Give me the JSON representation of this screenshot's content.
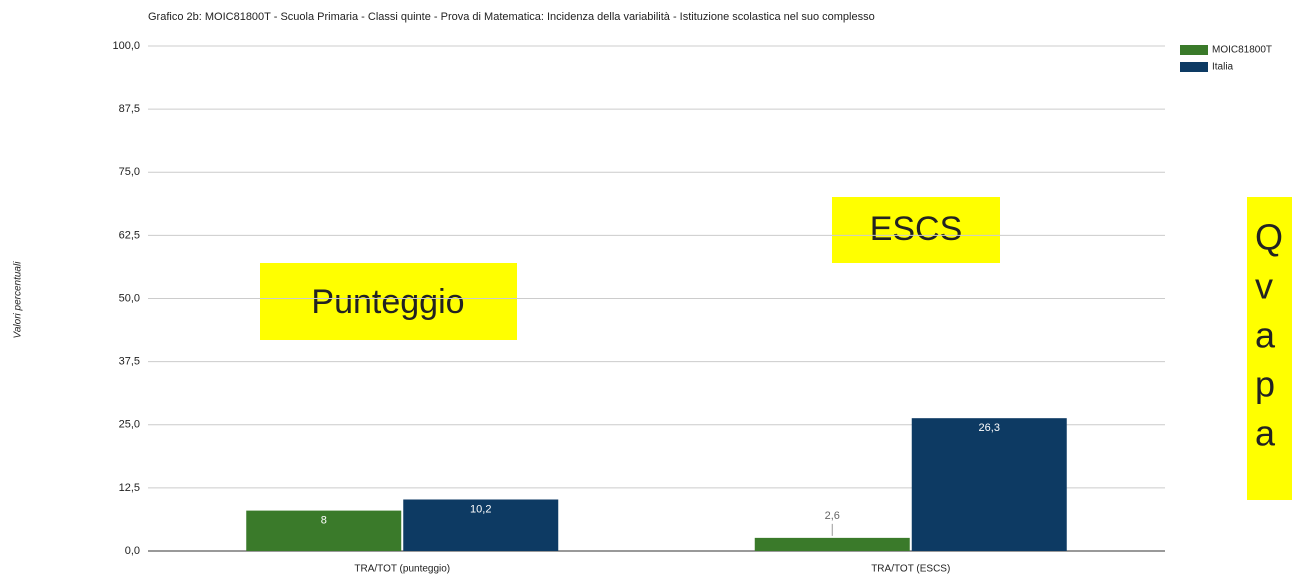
{
  "chart_data": {
    "type": "bar",
    "title": "Grafico 2b: MOIC81800T - Scuola Primaria - Classi quinte - Prova di Matematica: Incidenza della variabilità - Istituzione scolastica nel suo complesso",
    "y_label": "Valori percentuali",
    "categories": [
      "TRA/TOT (punteggio)",
      "TRA/TOT (ESCS)"
    ],
    "series": [
      {
        "name": "MOIC81800T",
        "color": "#3a7a2a",
        "values": [
          8,
          2.6
        ],
        "value_labels": [
          "8",
          "2,6"
        ]
      },
      {
        "name": "Italia",
        "color": "#0d3a63",
        "values": [
          10.2,
          26.3
        ],
        "value_labels": [
          "10,2",
          "26,3"
        ]
      }
    ],
    "ylim": [
      0,
      100
    ],
    "yticks": [
      {
        "value": 0,
        "label": "0,0"
      },
      {
        "value": 12.5,
        "label": "12,5"
      },
      {
        "value": 25,
        "label": "25,0"
      },
      {
        "value": 37.5,
        "label": "37,5"
      },
      {
        "value": 50,
        "label": "50,0"
      },
      {
        "value": 62.5,
        "label": "62,5"
      },
      {
        "value": 75,
        "label": "75,0"
      },
      {
        "value": 87.5,
        "label": "87,5"
      },
      {
        "value": 100,
        "label": "100,0"
      }
    ],
    "grid": true,
    "legend": "right",
    "annotations": [
      "Punteggio",
      "ESCS"
    ],
    "annotation_clipped": [
      "Q",
      "v",
      "a",
      "p",
      "a"
    ]
  }
}
